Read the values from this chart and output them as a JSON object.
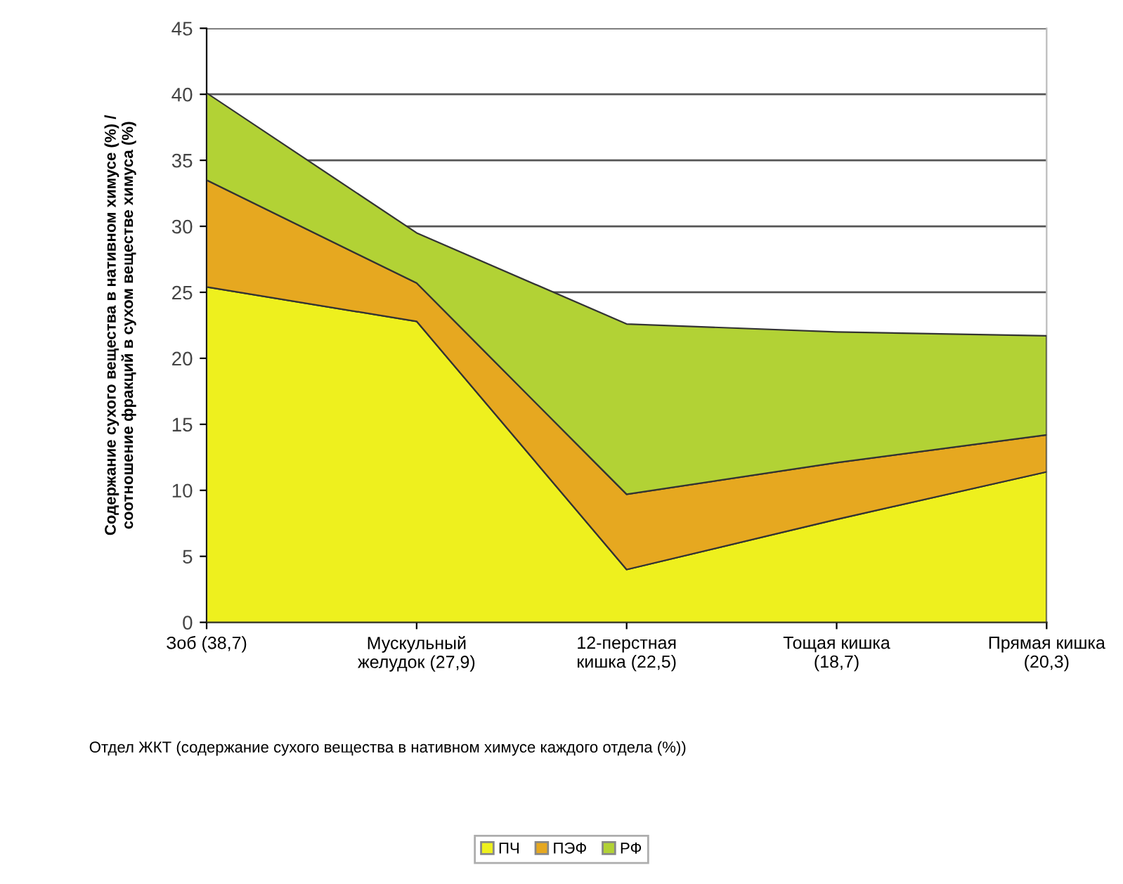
{
  "chart_data": {
    "type": "area",
    "stacked": true,
    "categories": [
      "Зоб (38,7)",
      "Мускульный\nжелудок (27,9)",
      "12-перстная\nкишка (22,5)",
      "Тощая кишка\n(18,7)",
      "Прямая кишка\n(20,3)"
    ],
    "series": [
      {
        "name": "ПЧ",
        "color": "#eef01e",
        "values": [
          25.4,
          22.8,
          4.0,
          7.8,
          11.4
        ]
      },
      {
        "name": "ПЭФ",
        "color": "#e6a820",
        "values": [
          8.1,
          2.9,
          5.7,
          4.3,
          2.8
        ]
      },
      {
        "name": "РФ",
        "color": "#b2d235",
        "values": [
          6.6,
          3.8,
          12.9,
          9.9,
          7.5
        ]
      }
    ],
    "ylabel": "Содержание сухого вещества в нативном химусе (%) /\nсоотношение фракций в сухом веществе химуса (%)",
    "xlabel": "Отдел ЖКТ (содержание сухого вещества в нативном химусе каждого отдела (%))",
    "ylim": [
      0,
      45
    ],
    "yticks": [
      0,
      5,
      10,
      15,
      20,
      25,
      30,
      35,
      40,
      45
    ],
    "grid": "y",
    "legend": "bottom"
  }
}
